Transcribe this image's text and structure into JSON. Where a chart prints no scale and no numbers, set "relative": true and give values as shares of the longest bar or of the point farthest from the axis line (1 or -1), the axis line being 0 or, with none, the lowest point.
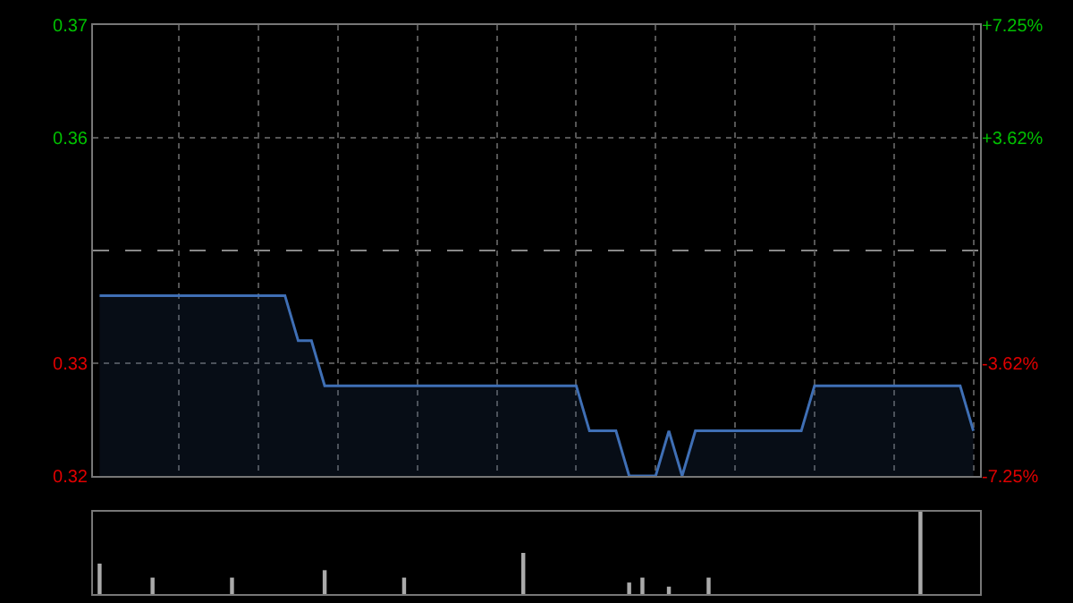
{
  "chart_data": [
    {
      "type": "area",
      "categories": [
        null,
        null,
        null,
        null,
        null,
        null,
        null,
        null,
        null,
        null,
        null,
        null,
        null,
        null,
        null,
        null,
        null,
        null,
        null,
        null,
        null,
        null,
        null,
        null,
        null,
        null,
        null,
        null,
        null,
        null,
        null,
        null,
        null,
        null,
        null,
        null,
        null,
        null,
        null,
        null,
        null,
        null,
        null,
        null,
        null,
        null,
        null,
        null,
        null,
        null,
        null,
        null,
        null,
        null,
        null,
        null,
        null,
        null,
        null,
        null,
        null,
        null,
        null,
        null,
        null,
        null,
        null
      ],
      "series": [
        {
          "color": "#3f6fb5",
          "values": [
            0.34,
            0.34,
            0.34,
            0.34,
            0.34,
            0.34,
            0.34,
            0.34,
            0.34,
            0.34,
            0.34,
            0.34,
            0.34,
            0.34,
            0.34,
            0.335,
            0.335,
            0.33,
            0.33,
            0.33,
            0.33,
            0.33,
            0.33,
            0.33,
            0.33,
            0.33,
            0.33,
            0.33,
            0.33,
            0.33,
            0.33,
            0.33,
            0.33,
            0.33,
            0.33,
            0.33,
            0.33,
            0.325,
            0.325,
            0.325,
            0.32,
            0.32,
            0.32,
            0.325,
            0.32,
            0.325,
            0.325,
            0.325,
            0.325,
            0.325,
            0.325,
            0.325,
            0.325,
            0.325,
            0.33,
            0.33,
            0.33,
            0.33,
            0.33,
            0.33,
            0.33,
            0.33,
            0.33,
            0.33,
            0.33,
            0.33,
            0.325
          ]
        }
      ],
      "ylim": [
        0.32,
        0.37
      ],
      "yticks": [
        {
          "value": 0.37,
          "label": "0.37"
        },
        {
          "value": 0.3575,
          "label": "0.36"
        },
        {
          "value": 0.3325,
          "label": "0.33"
        },
        {
          "value": 0.32,
          "label": "0.32"
        }
      ],
      "y2lim": [
        -7.25,
        7.25
      ],
      "y2ticks": [
        {
          "value": 7.25,
          "label": "+7.25%"
        },
        {
          "value": 3.62,
          "label": "+3.62%"
        },
        {
          "value": -3.62,
          "label": "-3.62%"
        },
        {
          "value": -7.25,
          "label": "-7.25%"
        }
      ],
      "ref_lines": [
        {
          "axis": "y",
          "value": 0.345,
          "line_style": "dashed",
          "color": "#888888"
        }
      ],
      "grid": true,
      "tick_labels": "y"
    },
    {
      "type": "bar",
      "relative": true,
      "categories": [
        null,
        null,
        null,
        null,
        null,
        null,
        null,
        null,
        null,
        null,
        null,
        null,
        null,
        null,
        null,
        null,
        null,
        null,
        null,
        null,
        null,
        null,
        null,
        null,
        null,
        null,
        null,
        null,
        null,
        null,
        null,
        null,
        null,
        null,
        null,
        null,
        null,
        null,
        null,
        null,
        null,
        null,
        null,
        null,
        null,
        null,
        null,
        null,
        null,
        null,
        null,
        null,
        null,
        null,
        null,
        null,
        null,
        null,
        null,
        null,
        null,
        null,
        null,
        null,
        null,
        null,
        null
      ],
      "values": [
        0.37,
        0,
        0,
        0,
        0.2,
        0,
        0,
        0,
        0,
        0,
        0.2,
        0,
        0,
        0,
        0,
        0,
        0,
        0.29,
        0,
        0,
        0,
        0,
        0,
        0.2,
        0,
        0,
        0,
        0,
        0,
        0,
        0,
        0,
        0.5,
        0,
        0,
        0,
        0,
        0,
        0,
        0,
        0.14,
        0.2,
        0,
        0.09,
        0,
        0,
        0.2,
        0,
        0,
        0,
        0,
        0,
        0,
        0,
        0,
        0,
        0,
        0,
        0,
        0,
        0,
        0,
        1,
        0,
        0,
        0,
        0
      ],
      "color": "#aaaaaa",
      "tick_labels": false
    }
  ]
}
